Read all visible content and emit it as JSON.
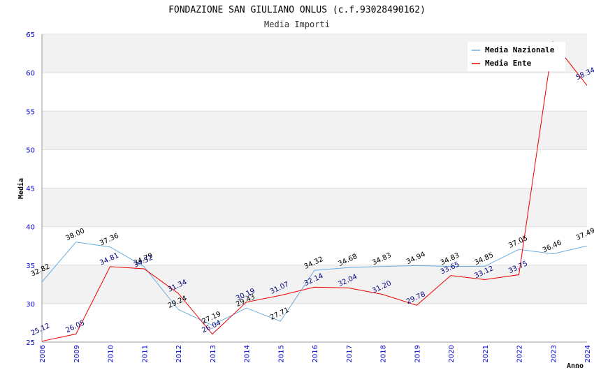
{
  "chart_data": {
    "type": "line",
    "title": "FONDAZIONE SAN GIULIANO ONLUS (c.f.93028490162)",
    "subtitle": "Media Importi",
    "xlabel": "Anno",
    "ylabel": "Media",
    "ylim": [
      25,
      65
    ],
    "yticks": [
      "25",
      "30",
      "35",
      "40",
      "45",
      "50",
      "55",
      "60",
      "65"
    ],
    "categories": [
      "2006",
      "2009",
      "2010",
      "2011",
      "2012",
      "2013",
      "2014",
      "2015",
      "2016",
      "2017",
      "2018",
      "2019",
      "2020",
      "2021",
      "2022",
      "2023",
      "2024"
    ],
    "legend_position": "top-right",
    "grid": "horizontal alternating bands",
    "series": [
      {
        "name": "Media Nazionale",
        "color": "#6aaee0",
        "label_color": "#000000",
        "values": [
          32.82,
          38.0,
          37.36,
          34.79,
          29.24,
          27.19,
          29.43,
          27.71,
          34.32,
          34.68,
          34.83,
          34.94,
          34.83,
          34.85,
          37.05,
          36.46,
          37.49
        ],
        "labels": [
          "32.82",
          "38.00",
          "37.36",
          "34.79",
          "29.24",
          "27.19",
          "29.43",
          "27.71",
          "34.32",
          "34.68",
          "34.83",
          "34.94",
          "34.83",
          "34.85",
          "37.05",
          "36.46",
          "37.49"
        ]
      },
      {
        "name": "Media Ente",
        "color": "#ee0000",
        "label_color": "#000080",
        "values": [
          25.12,
          26.05,
          34.81,
          34.52,
          31.34,
          26.04,
          30.19,
          31.07,
          32.14,
          32.04,
          31.2,
          29.78,
          33.65,
          33.12,
          33.75,
          64.0,
          58.34
        ],
        "labels": [
          "25.12",
          "26.05",
          "34.81",
          "34.52",
          "31.34",
          "26.04",
          "30.19",
          "31.07",
          "32.14",
          "32.04",
          "31.20",
          "29.78",
          "33.65",
          "33.12",
          "33.75",
          "",
          "58.34"
        ]
      }
    ]
  }
}
